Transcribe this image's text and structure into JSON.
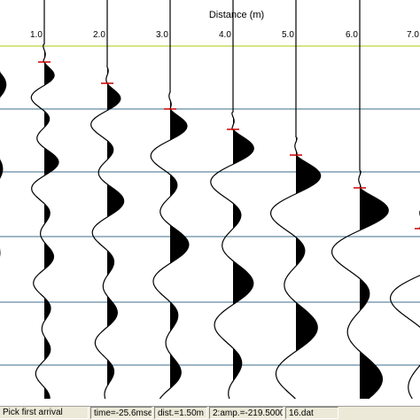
{
  "plot": {
    "axis_title": "Distance (m)",
    "tick_labels": [
      "1.0",
      "2.0",
      "3.0",
      "4.0",
      "5.0",
      "6.0",
      "7.0"
    ],
    "colors": {
      "ruler": "#c8dc5a",
      "time_lines": "#3c6e8c",
      "pick_marker": "#cc0000",
      "trace": "#000000"
    }
  },
  "statusbar": {
    "mode": "Pick first arrival",
    "time": "time=-25.6mse",
    "dist": "dist.=1.50m",
    "amp": "2:amp.=-219.50000",
    "file": "16.dat"
  }
}
